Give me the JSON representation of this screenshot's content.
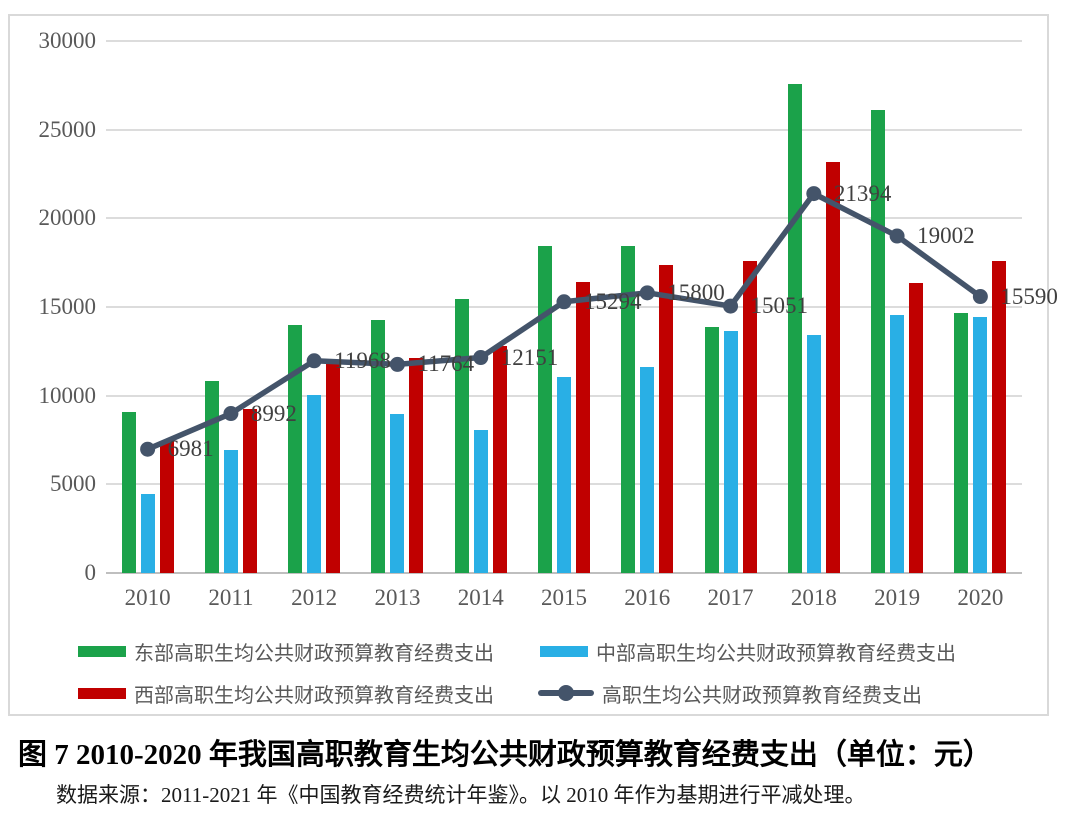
{
  "figure": {
    "caption": "图 7 2010-2020 年我国高职教育生均公共财政预算教育经费支出（单位：元）",
    "source_note": "数据来源：2011-2021 年《中国教育经费统计年鉴》。以 2010 年作为基期进行平减处理。"
  },
  "colors": {
    "east": "#1ba24a",
    "central": "#29afe5",
    "west": "#c00000",
    "line": "#44546a",
    "gridline": "#dcdcdc",
    "baseline": "#bfbfbf",
    "axis_text": "#595959",
    "data_label_text": "#404040"
  },
  "chart_data": {
    "type": "bar",
    "subtype": "grouped bars with overlay line",
    "categories": [
      "2010",
      "2011",
      "2012",
      "2013",
      "2014",
      "2015",
      "2016",
      "2017",
      "2018",
      "2019",
      "2020"
    ],
    "series": [
      {
        "name": "东部高职生均公共财政预算教育经费支出",
        "type": "bar",
        "color_key": "east",
        "values": [
          9100,
          10800,
          14000,
          14250,
          15450,
          18430,
          18430,
          13850,
          27600,
          26100,
          14680
        ]
      },
      {
        "name": "中部高职生均公共财政预算教育经费支出",
        "type": "bar",
        "color_key": "central",
        "values": [
          4470,
          6960,
          10040,
          8940,
          8090,
          11050,
          11620,
          13660,
          13430,
          14530,
          14450
        ]
      },
      {
        "name": "西部高职生均公共财政预算教育经费支出",
        "type": "bar",
        "color_key": "west",
        "values": [
          7430,
          9230,
          11760,
          12110,
          12810,
          16430,
          17380,
          17620,
          23150,
          16360,
          17590
        ]
      },
      {
        "name": "高职生均公共财政预算教育经费支出",
        "type": "line",
        "color_key": "line",
        "data_labels": true,
        "values": [
          6981,
          8992,
          11968,
          11764,
          12151,
          15294,
          15800,
          15051,
          21394,
          19002,
          15590
        ]
      }
    ],
    "title": "",
    "xlabel": "",
    "ylabel": "",
    "ylim": [
      0,
      30000
    ],
    "ytick_step": 5000,
    "yticks": [
      "0",
      "5000",
      "10000",
      "15000",
      "20000",
      "25000",
      "30000"
    ],
    "grid": "horizontal",
    "legend_position": "bottom"
  },
  "legend": {
    "items": [
      {
        "label": "东部高职生均公共财政预算教育经费支出",
        "swatch": "bar",
        "color_key": "east"
      },
      {
        "label": "中部高职生均公共财政预算教育经费支出",
        "swatch": "bar",
        "color_key": "central"
      },
      {
        "label": "西部高职生均公共财政预算教育经费支出",
        "swatch": "bar",
        "color_key": "west"
      },
      {
        "label": "高职生均公共财政预算教育经费支出",
        "swatch": "line",
        "color_key": "line"
      }
    ]
  }
}
